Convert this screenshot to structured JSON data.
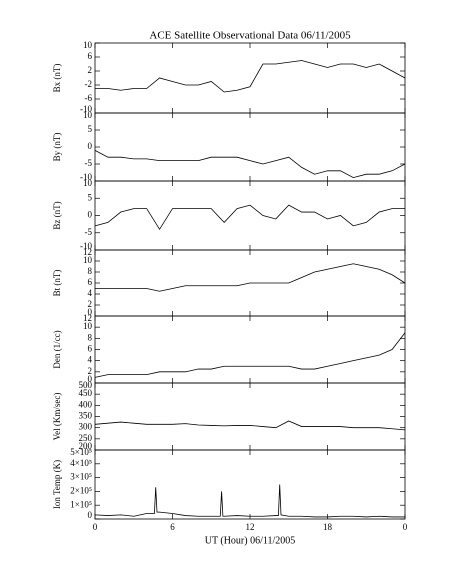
{
  "title": "ACE Satellite Observational Data   06/11/2005",
  "xlabel": "UT (Hour)   06/11/2005",
  "xlim": [
    0,
    24
  ],
  "xticks": [
    0,
    6,
    12,
    18,
    {
      "value": 24,
      "label": "0"
    }
  ],
  "chart_data": [
    {
      "type": "line",
      "ylabel": "Bx (nT)",
      "color": "#000000",
      "ylim": [
        -10,
        10
      ],
      "yticks": [
        -10,
        -6,
        -2,
        2,
        6,
        10
      ],
      "x": [
        0,
        1,
        2,
        3,
        4,
        5,
        6,
        7,
        8,
        9,
        10,
        11,
        12,
        13,
        14,
        15,
        16,
        17,
        18,
        19,
        20,
        21,
        22,
        23,
        24
      ],
      "values": [
        -3,
        -3,
        -3.5,
        -3,
        -3,
        0,
        -1,
        -2,
        -2,
        -1,
        -4,
        -3.5,
        -2.5,
        4,
        4,
        4.5,
        5,
        4,
        3,
        4,
        4,
        3,
        4,
        2,
        0
      ]
    },
    {
      "type": "line",
      "ylabel": "By (nT)",
      "color": "#000000",
      "ylim": [
        -10,
        10
      ],
      "yticks": [
        -10,
        -5,
        0,
        5,
        10
      ],
      "x": [
        0,
        1,
        2,
        3,
        4,
        5,
        6,
        7,
        8,
        9,
        10,
        11,
        12,
        13,
        14,
        15,
        16,
        17,
        18,
        19,
        20,
        21,
        22,
        23,
        24
      ],
      "values": [
        -1,
        -3,
        -3,
        -3.5,
        -3.5,
        -4,
        -4,
        -4,
        -4,
        -3,
        -3,
        -3,
        -4,
        -5,
        -4,
        -3,
        -6,
        -8,
        -7,
        -7,
        -9,
        -8,
        -8,
        -7,
        -5
      ]
    },
    {
      "type": "line",
      "ylabel": "Bz (nT)",
      "color": "#000000",
      "ylim": [
        -10,
        10
      ],
      "yticks": [
        -10,
        -5,
        0,
        5,
        10
      ],
      "x": [
        0,
        1,
        2,
        3,
        4,
        5,
        6,
        7,
        8,
        9,
        10,
        11,
        12,
        13,
        14,
        15,
        16,
        17,
        18,
        19,
        20,
        21,
        22,
        23,
        24
      ],
      "values": [
        -3,
        -2,
        1,
        2,
        2,
        -4,
        2,
        2,
        2,
        2,
        -2,
        2,
        3,
        0,
        -1,
        3,
        1,
        1,
        -1,
        0,
        -3,
        -2,
        1,
        2,
        2
      ]
    },
    {
      "type": "line",
      "ylabel": "Bt (nT)",
      "color": "#000000",
      "ylim": [
        0,
        12
      ],
      "yticks": [
        0,
        2,
        4,
        6,
        8,
        10,
        12
      ],
      "x": [
        0,
        1,
        2,
        3,
        4,
        5,
        6,
        7,
        8,
        9,
        10,
        11,
        12,
        13,
        14,
        15,
        16,
        17,
        18,
        19,
        20,
        21,
        22,
        23,
        24
      ],
      "values": [
        5,
        5,
        5,
        5,
        5,
        4.5,
        5,
        5.5,
        5.5,
        5.5,
        5.5,
        5.5,
        6,
        6,
        6,
        6,
        7,
        8,
        8.5,
        9,
        9.5,
        9,
        8.5,
        7.5,
        6
      ]
    },
    {
      "type": "line",
      "ylabel": "Den (1/cc)",
      "color": "#000000",
      "ylim": [
        0,
        12
      ],
      "yticks": [
        0,
        2,
        4,
        6,
        8,
        10,
        12
      ],
      "x": [
        0,
        1,
        2,
        3,
        4,
        5,
        6,
        7,
        8,
        9,
        10,
        11,
        12,
        13,
        14,
        15,
        16,
        17,
        18,
        19,
        20,
        21,
        22,
        23,
        24
      ],
      "values": [
        1,
        1.5,
        1.5,
        1.5,
        1.5,
        2,
        2,
        2,
        2.5,
        2.5,
        3,
        3,
        3,
        3,
        3,
        3,
        2.5,
        2.5,
        3,
        3.5,
        4,
        4.5,
        5,
        6,
        9
      ]
    },
    {
      "type": "line",
      "ylabel": "Vel (Km/sec)",
      "color": "#000000",
      "ylim": [
        200,
        500
      ],
      "yticks": [
        200,
        250,
        300,
        350,
        400,
        450,
        500
      ],
      "x": [
        0,
        1,
        2,
        3,
        4,
        5,
        6,
        7,
        8,
        9,
        10,
        11,
        12,
        13,
        14,
        15,
        16,
        17,
        18,
        19,
        20,
        21,
        22,
        23,
        24
      ],
      "values": [
        315,
        320,
        325,
        320,
        315,
        315,
        315,
        318,
        312,
        310,
        308,
        310,
        310,
        305,
        300,
        330,
        305,
        305,
        305,
        305,
        300,
        300,
        300,
        295,
        290
      ]
    },
    {
      "type": "line",
      "ylabel": "Ion Temp (K)",
      "color": "#000000",
      "ylim": [
        0,
        500000
      ],
      "yticks": [
        0,
        {
          "value": 100000,
          "label": "1×10⁵"
        },
        {
          "value": 200000,
          "label": "2×10⁵"
        },
        {
          "value": 300000,
          "label": "3×10⁵"
        },
        {
          "value": 400000,
          "label": "4×10⁵"
        },
        {
          "value": 500000,
          "label": "5×10⁵"
        }
      ],
      "x": [
        0,
        1,
        2,
        3,
        4,
        4.6,
        4.7,
        4.8,
        5,
        6,
        7,
        8,
        9,
        9.7,
        9.8,
        9.9,
        10,
        11,
        12,
        13,
        14,
        14.2,
        14.3,
        14.4,
        15,
        16,
        17,
        18,
        19,
        20,
        21,
        22,
        23,
        24
      ],
      "values": [
        30000,
        25000,
        30000,
        20000,
        40000,
        40000,
        230000,
        50000,
        50000,
        40000,
        25000,
        20000,
        20000,
        20000,
        200000,
        20000,
        20000,
        25000,
        20000,
        20000,
        25000,
        25000,
        250000,
        30000,
        20000,
        20000,
        15000,
        15000,
        20000,
        20000,
        15000,
        20000,
        15000,
        15000
      ]
    }
  ]
}
